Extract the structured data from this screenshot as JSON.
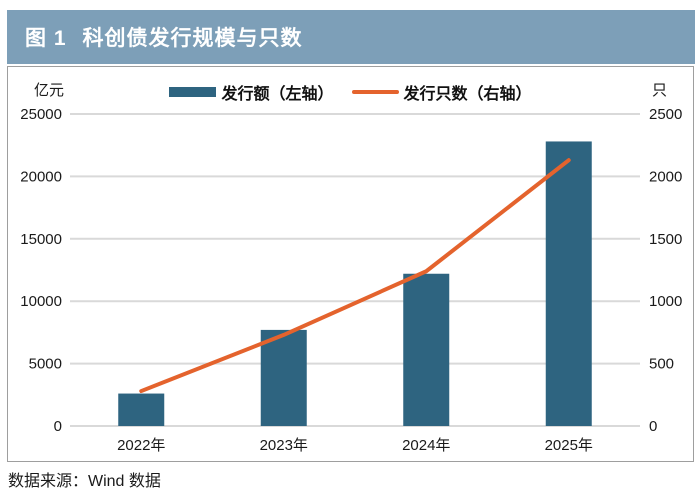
{
  "header": {
    "figure_label": "图 1",
    "title": "科创债发行规模与只数"
  },
  "footer": {
    "source": "数据来源：Wind 数据"
  },
  "chart_data": {
    "type": "bar",
    "combo": "bar+line dual axis",
    "categories": [
      "2022年",
      "2023年",
      "2024年",
      "2025年"
    ],
    "series": [
      {
        "name": "发行额（左轴）",
        "type": "bar",
        "axis": "left",
        "values": [
          2600,
          7700,
          12200,
          22800
        ],
        "color": "#2E6480"
      },
      {
        "name": "发行只数（右轴）",
        "type": "line",
        "axis": "right",
        "values": [
          280,
          730,
          1240,
          2130
        ],
        "color": "#E4632D"
      }
    ],
    "left_axis": {
      "unit": "亿元",
      "min": 0,
      "max": 25000,
      "ticks": [
        0,
        5000,
        10000,
        15000,
        20000,
        25000
      ]
    },
    "right_axis": {
      "unit": "只",
      "min": 0,
      "max": 2500,
      "ticks": [
        0,
        500,
        1000,
        1500,
        2000,
        2500
      ]
    },
    "grid": true,
    "legend_position": "top-center",
    "colors": {
      "header_band": "#7D9FB8",
      "grid": "#D9D9D9",
      "panel_border": "#9E9E9E",
      "text": "#1a1a1a"
    }
  }
}
